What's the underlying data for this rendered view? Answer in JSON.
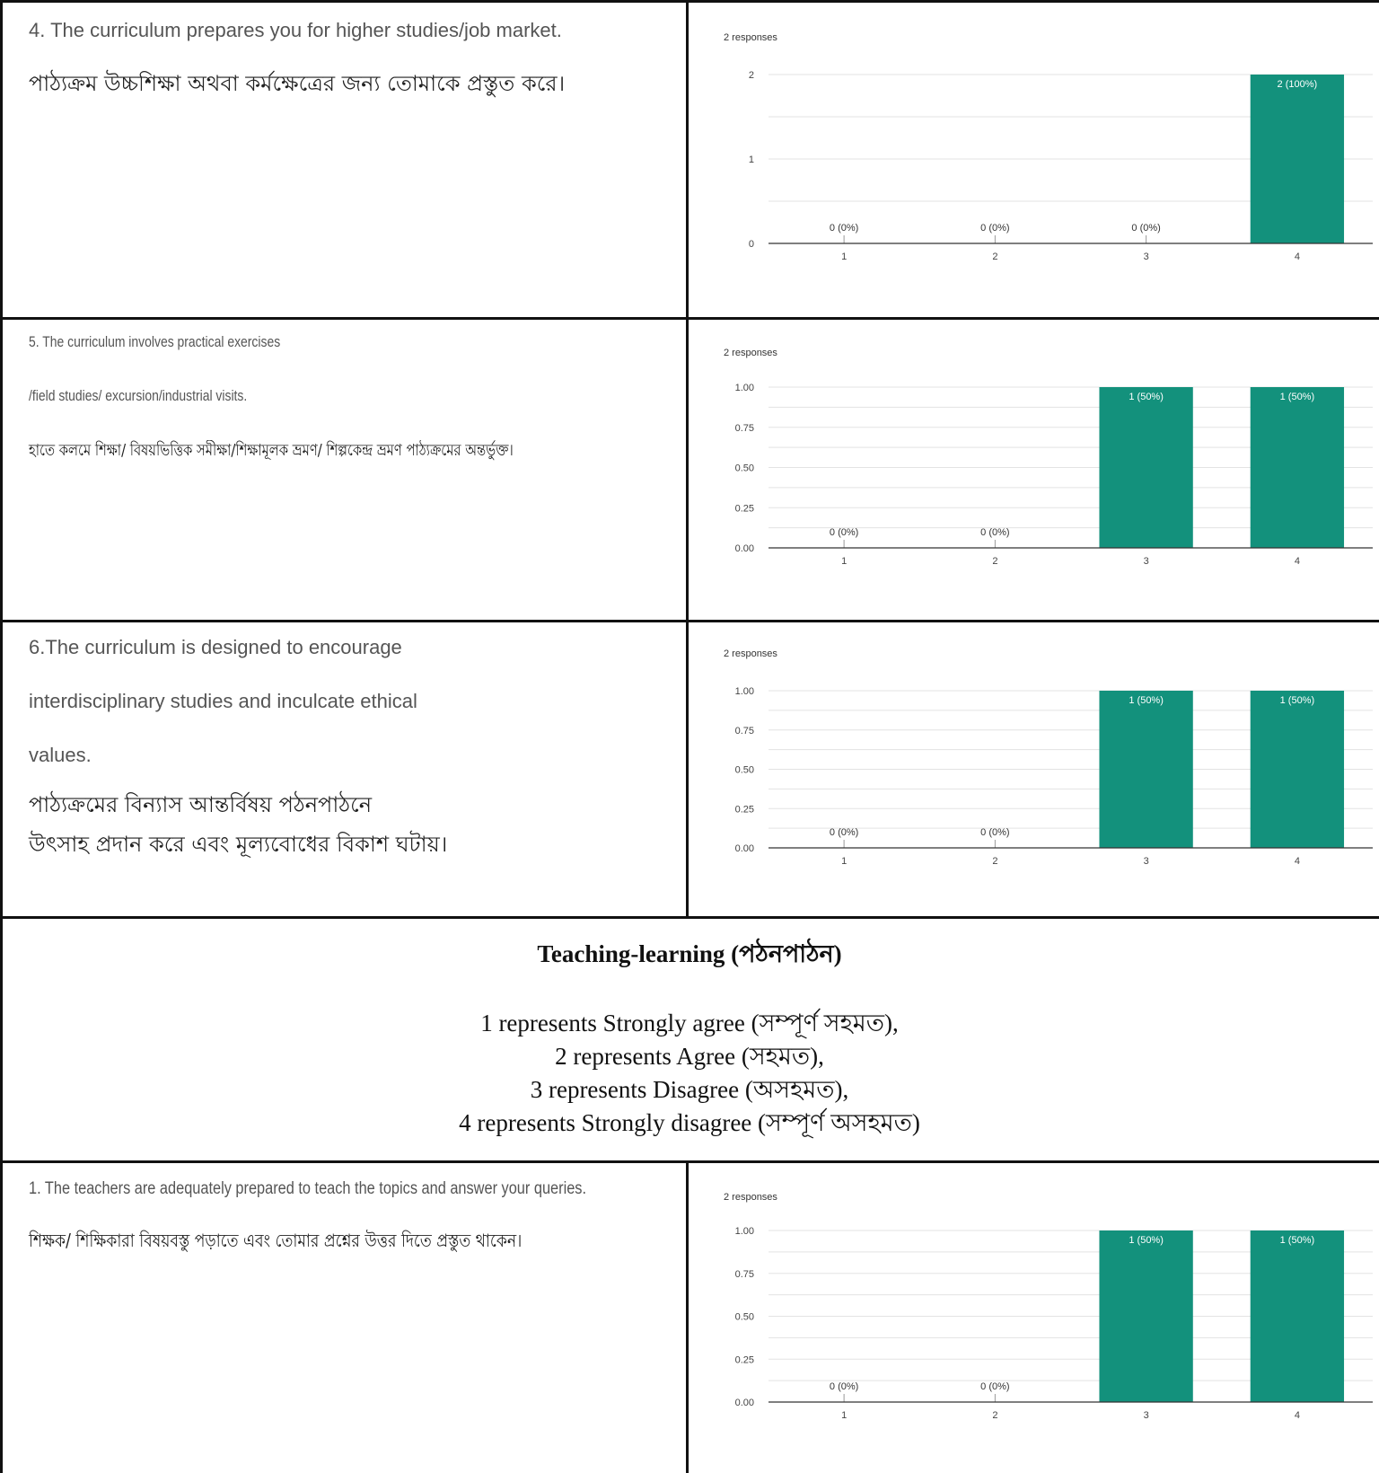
{
  "questions": [
    {
      "lines": [
        "4.  The curriculum prepares you for higher studies/job market.",
        "পাঠ্যক্রম উচ্চশিক্ষা অথবা কর্মক্ষেত্রের জন্য তোমাকে প্রস্তুত করে।"
      ],
      "responses_label": "2 responses"
    },
    {
      "lines": [
        "5. The curriculum involves practical exercises",
        "/field studies/ excursion/industrial visits.",
        "হাতে কলমে শিক্ষা/ বিষয়ভিত্তিক সমীক্ষা/শিক্ষামূলক ভ্রমণ/ শিল্পকেন্দ্র ভ্রমণ পাঠ্যক্রমের অন্তর্ভুক্ত।"
      ],
      "responses_label": "2 responses"
    },
    {
      "lines": [
        "6.The curriculum is designed to encourage",
        "interdisciplinary studies and inculcate ethical",
        "values.",
        "পাঠ্যক্রমের বিন্যাস আন্তর্বিষয় পঠনপাঠনে",
        "উৎসাহ প্রদান করে এবং মূল্যবোধের বিকাশ ঘটায়।"
      ],
      "responses_label": "2 responses"
    },
    {
      "lines": [
        "1. The teachers are adequately prepared to teach the topics and answer your queries.",
        "শিক্ষক/ শিক্ষিকারা বিষয়বস্তু পড়াতে এবং তোমার প্রশ্নের উত্তর দিতে প্রস্তুত থাকেন।"
      ],
      "responses_label": "2 responses"
    }
  ],
  "section": {
    "title": "Teaching-learning (পঠনপাঠন)",
    "legend": [
      "1 represents Strongly agree (সম্পূর্ণ সহমত),",
      "2 represents Agree (সহমত),",
      "3 represents Disagree (অসহমত),",
      "4 represents Strongly disagree (সম্পূর্ণ অসহমত)"
    ]
  },
  "colors": {
    "bar": "#13917c",
    "grid": "#e3e3e3",
    "axis": "#333333",
    "border": "#111111"
  },
  "chart_data": [
    {
      "type": "bar",
      "categories": [
        "1",
        "2",
        "3",
        "4"
      ],
      "values": [
        0,
        0,
        0,
        2
      ],
      "data_labels": [
        "0 (0%)",
        "0 (0%)",
        "0 (0%)",
        "2 (100%)"
      ],
      "yticks": [
        "0",
        "1",
        "2"
      ],
      "ylim": [
        0,
        2
      ],
      "grid": true
    },
    {
      "type": "bar",
      "categories": [
        "1",
        "2",
        "3",
        "4"
      ],
      "values": [
        0,
        0,
        1,
        1
      ],
      "data_labels": [
        "0 (0%)",
        "0 (0%)",
        "1 (50%)",
        "1 (50%)"
      ],
      "yticks": [
        "0.00",
        "0.25",
        "0.50",
        "0.75",
        "1.00"
      ],
      "ylim": [
        0,
        1
      ],
      "grid": true
    },
    {
      "type": "bar",
      "categories": [
        "1",
        "2",
        "3",
        "4"
      ],
      "values": [
        0,
        0,
        1,
        1
      ],
      "data_labels": [
        "0 (0%)",
        "0 (0%)",
        "1 (50%)",
        "1 (50%)"
      ],
      "yticks": [
        "0.00",
        "0.25",
        "0.50",
        "0.75",
        "1.00"
      ],
      "ylim": [
        0,
        1
      ],
      "grid": true
    },
    {
      "type": "bar",
      "categories": [
        "1",
        "2",
        "3",
        "4"
      ],
      "values": [
        0,
        0,
        1,
        1
      ],
      "data_labels": [
        "0 (0%)",
        "0 (0%)",
        "1 (50%)",
        "1 (50%)"
      ],
      "yticks": [
        "0.00",
        "0.25",
        "0.50",
        "0.75",
        "1.00"
      ],
      "ylim": [
        0,
        1
      ],
      "grid": true
    }
  ]
}
